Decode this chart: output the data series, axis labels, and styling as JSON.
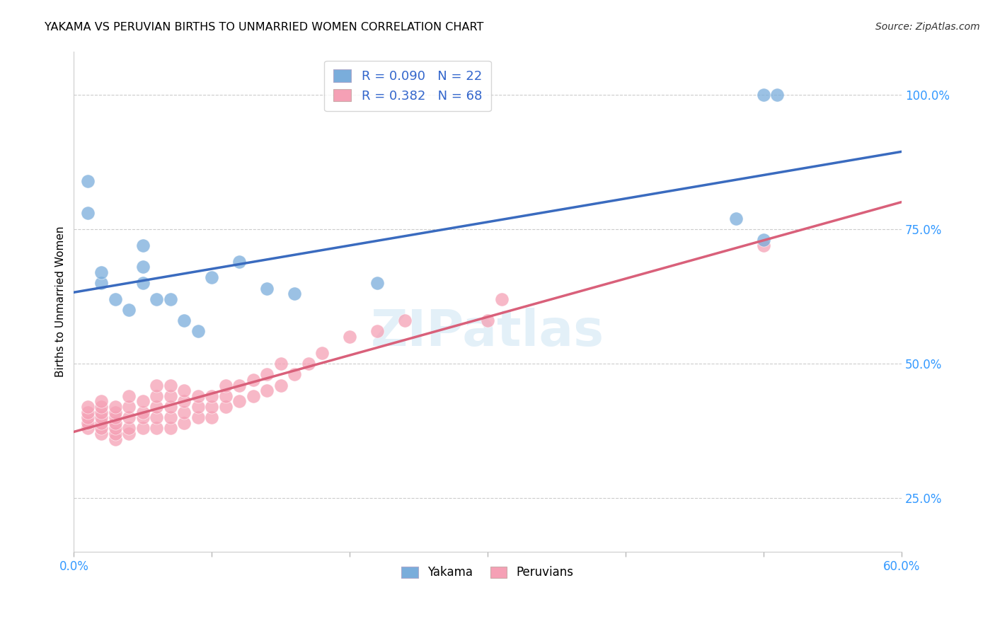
{
  "title": "YAKAMA VS PERUVIAN BIRTHS TO UNMARRIED WOMEN CORRELATION CHART",
  "source": "Source: ZipAtlas.com",
  "ylabel": "Births to Unmarried Women",
  "xlim": [
    0.0,
    0.6
  ],
  "ylim": [
    0.15,
    1.08
  ],
  "xtick_positions": [
    0.0,
    0.1,
    0.2,
    0.3,
    0.4,
    0.5,
    0.6
  ],
  "xticklabels": [
    "0.0%",
    "",
    "",
    "",
    "",
    "",
    "60.0%"
  ],
  "ytick_positions": [
    0.25,
    0.5,
    0.75,
    1.0
  ],
  "ytick_labels": [
    "25.0%",
    "50.0%",
    "75.0%",
    "100.0%"
  ],
  "grid_color": "#cccccc",
  "background_color": "#ffffff",
  "yakama_color": "#7aaddb",
  "peruvian_color": "#f5a0b5",
  "yakama_line_color": "#3a6bbf",
  "peruvian_line_color": "#d9607a",
  "R_yakama": 0.09,
  "N_yakama": 22,
  "R_peruvian": 0.382,
  "N_peruvian": 68,
  "yakama_x": [
    0.01,
    0.01,
    0.02,
    0.02,
    0.03,
    0.04,
    0.05,
    0.05,
    0.05,
    0.06,
    0.07,
    0.08,
    0.09,
    0.1,
    0.12,
    0.14,
    0.16,
    0.22,
    0.48,
    0.5,
    0.5,
    0.51
  ],
  "yakama_y": [
    0.84,
    0.78,
    0.65,
    0.67,
    0.62,
    0.6,
    0.65,
    0.68,
    0.72,
    0.62,
    0.62,
    0.58,
    0.56,
    0.66,
    0.69,
    0.64,
    0.63,
    0.65,
    0.77,
    0.73,
    1.0,
    1.0
  ],
  "peruvian_x": [
    0.01,
    0.01,
    0.01,
    0.01,
    0.01,
    0.02,
    0.02,
    0.02,
    0.02,
    0.02,
    0.02,
    0.02,
    0.03,
    0.03,
    0.03,
    0.03,
    0.03,
    0.03,
    0.03,
    0.04,
    0.04,
    0.04,
    0.04,
    0.04,
    0.05,
    0.05,
    0.05,
    0.05,
    0.06,
    0.06,
    0.06,
    0.06,
    0.06,
    0.07,
    0.07,
    0.07,
    0.07,
    0.07,
    0.08,
    0.08,
    0.08,
    0.08,
    0.09,
    0.09,
    0.09,
    0.1,
    0.1,
    0.1,
    0.11,
    0.11,
    0.11,
    0.12,
    0.12,
    0.13,
    0.13,
    0.14,
    0.14,
    0.15,
    0.15,
    0.16,
    0.17,
    0.18,
    0.2,
    0.22,
    0.24,
    0.3,
    0.31,
    0.5
  ],
  "peruvian_y": [
    0.38,
    0.39,
    0.4,
    0.41,
    0.42,
    0.37,
    0.38,
    0.39,
    0.4,
    0.41,
    0.42,
    0.43,
    0.36,
    0.37,
    0.38,
    0.39,
    0.4,
    0.41,
    0.42,
    0.37,
    0.38,
    0.4,
    0.42,
    0.44,
    0.38,
    0.4,
    0.41,
    0.43,
    0.38,
    0.4,
    0.42,
    0.44,
    0.46,
    0.38,
    0.4,
    0.42,
    0.44,
    0.46,
    0.39,
    0.41,
    0.43,
    0.45,
    0.4,
    0.42,
    0.44,
    0.4,
    0.42,
    0.44,
    0.42,
    0.44,
    0.46,
    0.43,
    0.46,
    0.44,
    0.47,
    0.45,
    0.48,
    0.46,
    0.5,
    0.48,
    0.5,
    0.52,
    0.55,
    0.56,
    0.58,
    0.58,
    0.62,
    0.72
  ],
  "watermark_text": "ZIPatlas",
  "legend_R_color": "#3366cc",
  "legend_N_color": "#3366cc"
}
